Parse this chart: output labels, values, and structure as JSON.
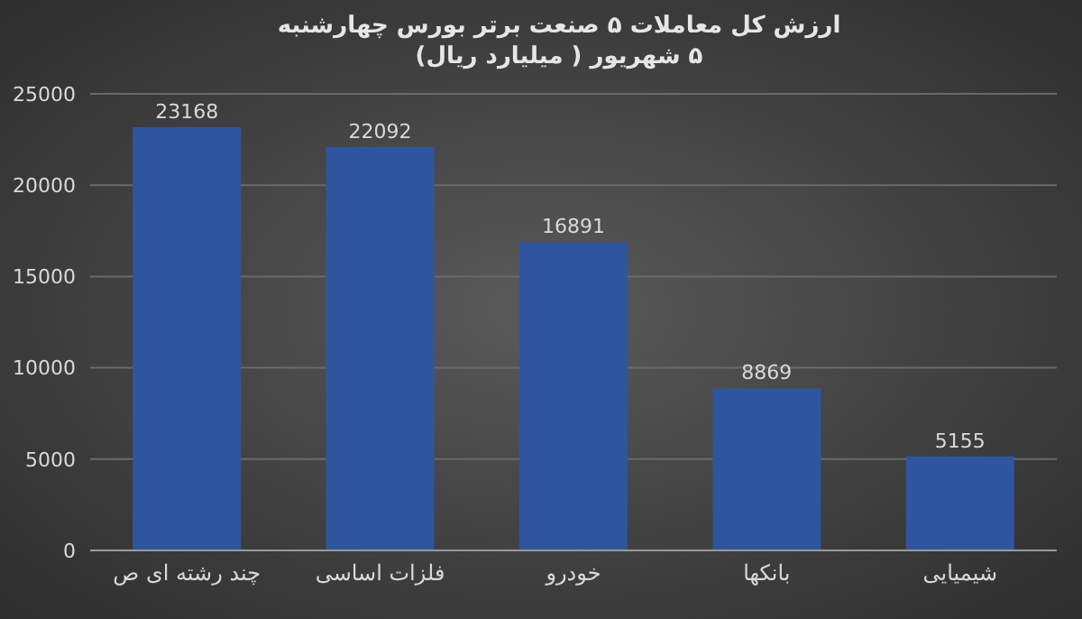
{
  "chart_data": {
    "type": "bar",
    "title": "ارزش کل معاملات ۵ صنعت برتر بورس چهارشنبه ۵ شهریور ( میلیارد ریال)",
    "categories": [
      "چند رشته ای ص",
      "فلزات اساسی",
      "خودرو",
      "بانکها",
      "شیمیایی"
    ],
    "values": [
      23168,
      22092,
      16891,
      8869,
      5155
    ],
    "color": "#2f559f",
    "ylim": [
      0,
      25000
    ],
    "yticks": [
      0,
      5000,
      10000,
      15000,
      20000,
      25000
    ],
    "grid": "y",
    "data_labels": true
  }
}
